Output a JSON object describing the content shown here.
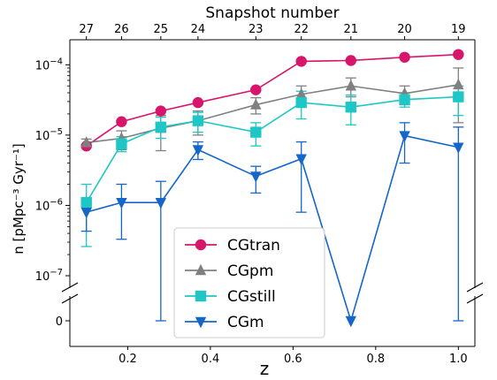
{
  "chart_data": {
    "type": "line",
    "xlabel": "z",
    "ylabel": "n [pMpc⁻³ Gyr⁻¹]",
    "top_axis_label": "Snapshot number",
    "xlim": [
      0.06,
      1.04
    ],
    "ylim": [
      1e-07,
      0.00018
    ],
    "yscale": "log with broken axis and a zero row",
    "x_ticks": [
      {
        "value": 0.2,
        "label": "0.2"
      },
      {
        "value": 0.4,
        "label": "0.4"
      },
      {
        "value": 0.6,
        "label": "0.6"
      },
      {
        "value": 0.8,
        "label": "0.8"
      },
      {
        "value": 1.0,
        "label": "1.0"
      }
    ],
    "top_ticks": [
      {
        "value": 0.1,
        "label": "27"
      },
      {
        "value": 0.185,
        "label": "26"
      },
      {
        "value": 0.28,
        "label": "25"
      },
      {
        "value": 0.37,
        "label": "24"
      },
      {
        "value": 0.51,
        "label": "23"
      },
      {
        "value": 0.62,
        "label": "22"
      },
      {
        "value": 0.74,
        "label": "21"
      },
      {
        "value": 0.87,
        "label": "20"
      },
      {
        "value": 1.0,
        "label": "19"
      }
    ],
    "y_ticks": [
      {
        "value": 0.0001,
        "base": "10",
        "exp": "−4"
      },
      {
        "value": 1e-05,
        "base": "10",
        "exp": "−5"
      },
      {
        "value": 1e-06,
        "base": "10",
        "exp": "−6"
      },
      {
        "value": 1e-07,
        "base": "10",
        "exp": "−7"
      }
    ],
    "zero_tick_label": "0",
    "legend": {
      "position": "lower-left",
      "fontsize_hint": "large"
    },
    "series": [
      {
        "name": "CGtran",
        "color": "#d6156b",
        "marker": "circle",
        "x": [
          0.1,
          0.185,
          0.28,
          0.37,
          0.51,
          0.62,
          0.74,
          0.87,
          1.0
        ],
        "y": [
          7e-06,
          1.55e-05,
          2.2e-05,
          2.9e-05,
          4.4e-05,
          0.000112,
          0.000115,
          0.000128,
          0.00014
        ],
        "err_lo": [
          6.7e-06,
          1.5e-05,
          2.15e-05,
          2.8e-05,
          4.3e-05,
          0.00011,
          0.000112,
          0.000125,
          0.000137
        ],
        "err_hi": [
          7.3e-06,
          1.62e-05,
          2.3e-05,
          3e-05,
          4.6e-05,
          0.000116,
          0.000118,
          0.000131,
          0.000143
        ]
      },
      {
        "name": "CGpm",
        "color": "#808080",
        "marker": "triangle-up",
        "x": [
          0.1,
          0.185,
          0.28,
          0.37,
          0.51,
          0.62,
          0.74,
          0.87,
          1.0
        ],
        "y": [
          7.8e-06,
          9e-06,
          1.25e-05,
          1.6e-05,
          2.7e-05,
          3.8e-05,
          5e-05,
          3.9e-05,
          5.2e-05
        ],
        "err_lo": [
          6.8e-06,
          6.2e-06,
          6e-06,
          1e-05,
          2e-05,
          2.7e-05,
          3.5e-05,
          2.7e-05,
          1.5e-05
        ],
        "err_hi": [
          8.8e-06,
          1.15e-05,
          1.9e-05,
          2.2e-05,
          3.4e-05,
          5e-05,
          6.5e-05,
          5e-05,
          9e-05
        ]
      },
      {
        "name": "CGstill",
        "color": "#1fc6c6",
        "marker": "square",
        "x": [
          0.1,
          0.185,
          0.28,
          0.37,
          0.51,
          0.62,
          0.74,
          0.87,
          1.0
        ],
        "y": [
          1.1e-06,
          7.5e-06,
          1.3e-05,
          1.6e-05,
          1.1e-05,
          2.9e-05,
          2.5e-05,
          3.2e-05,
          3.5e-05
        ],
        "err_lo": [
          2.6e-07,
          5.8e-06,
          9e-06,
          1.1e-05,
          7e-06,
          1.7e-05,
          1.4e-05,
          2.5e-05,
          1.9e-05
        ],
        "err_hi": [
          2e-06,
          9.5e-06,
          1.8e-05,
          2.1e-05,
          1.5e-05,
          4.2e-05,
          3.7e-05,
          4e-05,
          5e-05
        ]
      },
      {
        "name": "CGm",
        "color": "#1466c9",
        "marker": "triangle-down",
        "x": [
          0.1,
          0.185,
          0.28,
          0.37,
          0.51,
          0.62,
          0.74,
          0.87,
          1.0
        ],
        "y": [
          8e-07,
          1.1e-06,
          1.1e-06,
          6.2e-06,
          2.6e-06,
          4.6e-06,
          0,
          9.8e-06,
          6.7e-06
        ],
        "err_lo": [
          4.3e-07,
          3.3e-07,
          0,
          4.5e-06,
          1.5e-06,
          8e-07,
          0,
          4e-06,
          0
        ],
        "err_hi": [
          1.1e-06,
          2e-06,
          2.2e-06,
          8e-06,
          3.6e-06,
          8e-06,
          0,
          1.5e-05,
          1.3e-05
        ]
      }
    ]
  }
}
